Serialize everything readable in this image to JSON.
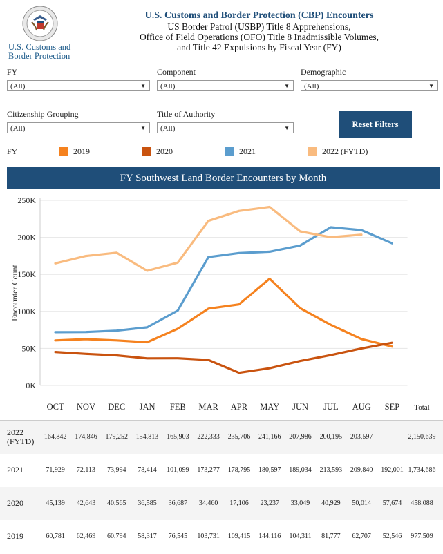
{
  "header": {
    "brand_line1": "U.S. Customs and",
    "brand_line2": "Border Protection",
    "title": "U.S. Customs and Border Protection (CBP) Encounters",
    "subtitle_line1": "US Border Patrol (USBP) Title 8 Apprehensions,",
    "subtitle_line2": "Office of Field Operations (OFO) Title 8 Inadmissible Volumes,",
    "subtitle_line3": "and Title 42 Expulsions by Fiscal Year (FY)"
  },
  "filters": {
    "fy": {
      "label": "FY",
      "value": "(All)"
    },
    "component": {
      "label": "Component",
      "value": "(All)"
    },
    "demographic": {
      "label": "Demographic",
      "value": "(All)"
    },
    "citizenship": {
      "label": "Citizenship Grouping",
      "value": "(All)"
    },
    "authority": {
      "label": "Title of Authority",
      "value": "(All)"
    },
    "reset_label": "Reset Filters"
  },
  "legend": {
    "title": "FY",
    "items": [
      {
        "label": "2019",
        "color": "#f5821f"
      },
      {
        "label": "2020",
        "color": "#c9530f"
      },
      {
        "label": "2021",
        "color": "#5b9dce"
      },
      {
        "label": "2022 (FYTD)",
        "color": "#f9bb7f"
      }
    ]
  },
  "chart_banner": "FY Southwest Land Border Encounters by Month",
  "chart_data": {
    "type": "line",
    "title": "FY Southwest Land Border Encounters by Month",
    "ylabel": "Encounter Count",
    "xlabel": "",
    "ylim": [
      0,
      250000
    ],
    "yticks": [
      "0K",
      "50K",
      "100K",
      "150K",
      "200K",
      "250K"
    ],
    "grid": true,
    "categories": [
      "OCT",
      "NOV",
      "DEC",
      "JAN",
      "FEB",
      "MAR",
      "APR",
      "MAY",
      "JUN",
      "JUL",
      "AUG",
      "SEP"
    ],
    "series": [
      {
        "name": "2019",
        "color": "#f5821f",
        "values": [
          60781,
          62469,
          60794,
          58317,
          76545,
          103731,
          109415,
          144116,
          104311,
          81777,
          62707,
          52546
        ]
      },
      {
        "name": "2020",
        "color": "#c9530f",
        "values": [
          45139,
          42643,
          40565,
          36585,
          36687,
          34460,
          17106,
          23237,
          33049,
          40929,
          50014,
          57674
        ]
      },
      {
        "name": "2021",
        "color": "#5b9dce",
        "values": [
          71929,
          72113,
          73994,
          78414,
          101099,
          173277,
          178795,
          180597,
          189034,
          213593,
          209840,
          192001
        ]
      },
      {
        "name": "2022 (FYTD)",
        "color": "#f9bb7f",
        "values": [
          164842,
          174846,
          179252,
          154813,
          165903,
          222333,
          235706,
          241166,
          207986,
          200195,
          203597,
          null
        ]
      }
    ]
  },
  "table": {
    "total_label": "Total",
    "rows": [
      {
        "year_line1": "2022",
        "year_line2": "(FYTD)",
        "cells": [
          "164,842",
          "174,846",
          "179,252",
          "154,813",
          "165,903",
          "222,333",
          "235,706",
          "241,166",
          "207,986",
          "200,195",
          "203,597",
          ""
        ],
        "total": "2,150,639"
      },
      {
        "year_line1": "2021",
        "year_line2": "",
        "cells": [
          "71,929",
          "72,113",
          "73,994",
          "78,414",
          "101,099",
          "173,277",
          "178,795",
          "180,597",
          "189,034",
          "213,593",
          "209,840",
          "192,001"
        ],
        "total": "1,734,686"
      },
      {
        "year_line1": "2020",
        "year_line2": "",
        "cells": [
          "45,139",
          "42,643",
          "40,565",
          "36,585",
          "36,687",
          "34,460",
          "17,106",
          "23,237",
          "33,049",
          "40,929",
          "50,014",
          "57,674"
        ],
        "total": "458,088"
      },
      {
        "year_line1": "2019",
        "year_line2": "",
        "cells": [
          "60,781",
          "62,469",
          "60,794",
          "58,317",
          "76,545",
          "103,731",
          "109,415",
          "144,116",
          "104,311",
          "81,777",
          "62,707",
          "52,546"
        ],
        "total": "977,509"
      }
    ]
  }
}
